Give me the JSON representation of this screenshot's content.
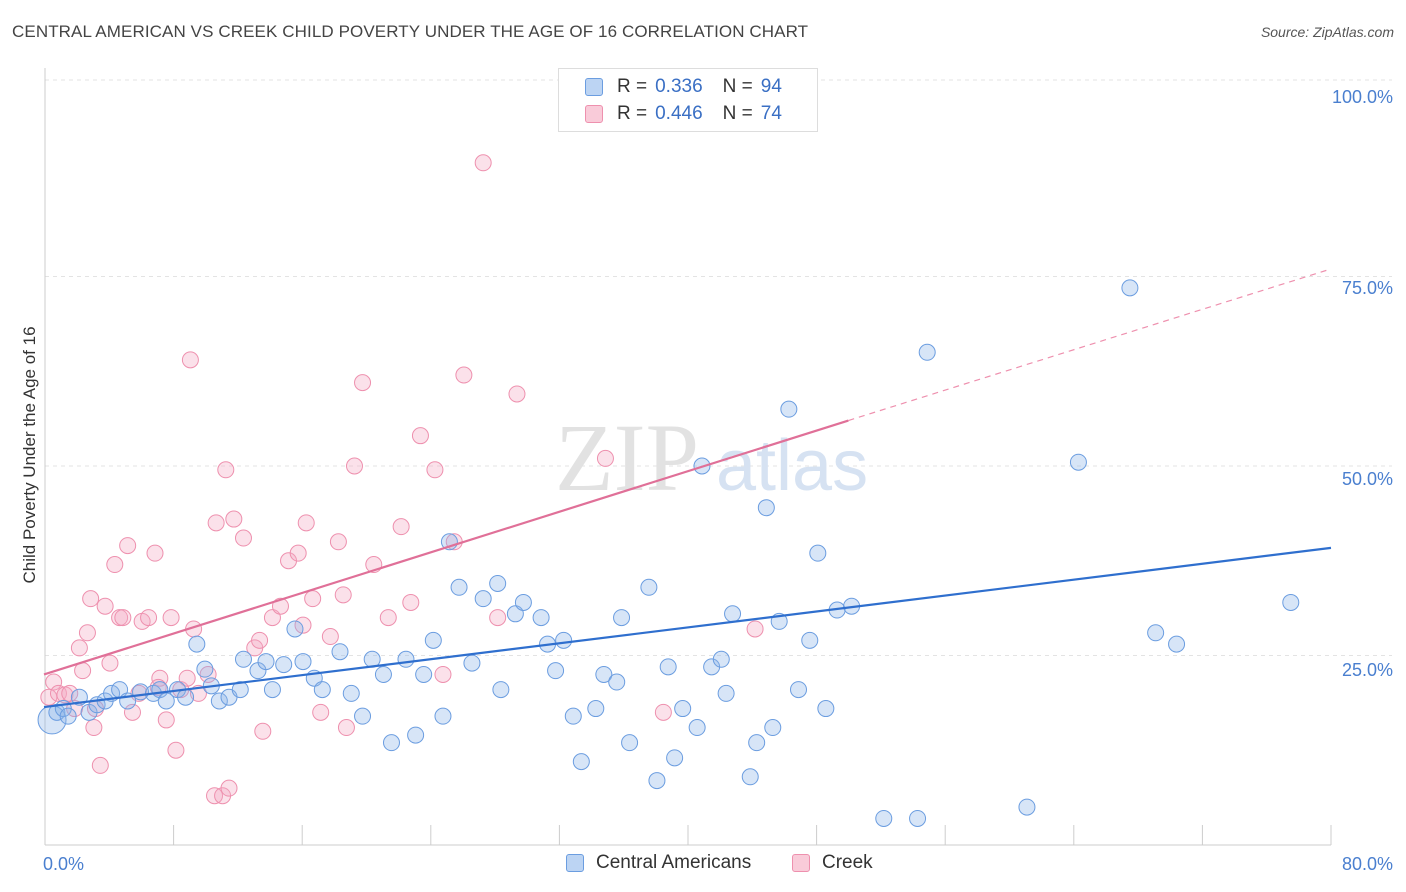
{
  "title": "CENTRAL AMERICAN VS CREEK CHILD POVERTY UNDER THE AGE OF 16 CORRELATION CHART",
  "source": "Source: ZipAtlas.com",
  "watermark": {
    "zip": "ZIP",
    "atlas": "atlas"
  },
  "legend": {
    "rows": [
      {
        "r_label": "R =",
        "r_value": "0.336",
        "n_label": "N =",
        "n_value": "94"
      },
      {
        "r_label": "R =",
        "r_value": "0.446",
        "n_label": "N =",
        "n_value": "74"
      }
    ]
  },
  "chart_data": {
    "type": "scatter",
    "ylabel": "Child Poverty Under the Age of 16",
    "xlim": [
      0,
      80
    ],
    "ylim": [
      0,
      100
    ],
    "x_tick_labels": [
      "0.0%",
      "80.0%"
    ],
    "y_tick_labels": [
      "100.0%",
      "75.0%",
      "50.0%",
      "25.0%"
    ],
    "y_ticks": [
      100,
      75,
      50,
      25
    ],
    "grid": "horizontal dashed",
    "legend_position": "top-center and bottom",
    "colors": {
      "blue": "#6b9de0",
      "blue_line": "#2f6fce",
      "pink": "#ee90ae",
      "pink_line": "#e07098"
    },
    "series": [
      {
        "name": "Central Americans",
        "color": "#6b9de0",
        "trend": {
          "x": [
            0,
            80
          ],
          "y": [
            18.2,
            39.2
          ]
        },
        "points": [
          [
            0.5,
            16.5
          ],
          [
            0.8,
            17.5
          ],
          [
            1.2,
            18
          ],
          [
            1.5,
            17
          ],
          [
            2.2,
            19.5
          ],
          [
            2.8,
            17.5
          ],
          [
            3.3,
            18.5
          ],
          [
            3.8,
            19
          ],
          [
            4.2,
            20
          ],
          [
            4.7,
            20.5
          ],
          [
            5.2,
            19
          ],
          [
            6,
            20.2
          ],
          [
            6.8,
            20
          ],
          [
            7.2,
            20.5
          ],
          [
            7.6,
            19
          ],
          [
            8.3,
            20.5
          ],
          [
            8.8,
            19.5
          ],
          [
            9.5,
            26.5
          ],
          [
            10,
            23.2
          ],
          [
            10.4,
            21
          ],
          [
            10.9,
            19
          ],
          [
            11.5,
            19.5
          ],
          [
            12.2,
            20.5
          ],
          [
            12.4,
            24.5
          ],
          [
            13.3,
            23
          ],
          [
            13.8,
            24.2
          ],
          [
            14.2,
            20.5
          ],
          [
            14.9,
            23.8
          ],
          [
            15.6,
            28.5
          ],
          [
            16.1,
            24.2
          ],
          [
            16.8,
            22
          ],
          [
            17.3,
            20.5
          ],
          [
            18.4,
            25.5
          ],
          [
            19.1,
            20
          ],
          [
            19.8,
            17
          ],
          [
            20.4,
            24.5
          ],
          [
            21.1,
            22.5
          ],
          [
            21.6,
            13.5
          ],
          [
            22.5,
            24.5
          ],
          [
            23.1,
            14.5
          ],
          [
            23.6,
            22.5
          ],
          [
            24.2,
            27
          ],
          [
            24.8,
            17
          ],
          [
            25.2,
            40
          ],
          [
            25.8,
            34
          ],
          [
            26.6,
            24
          ],
          [
            27.3,
            32.5
          ],
          [
            28.4,
            20.5
          ],
          [
            28.2,
            34.5
          ],
          [
            29.3,
            30.5
          ],
          [
            29.8,
            32
          ],
          [
            30.9,
            30
          ],
          [
            31.3,
            26.5
          ],
          [
            31.8,
            23
          ],
          [
            32.3,
            27
          ],
          [
            32.9,
            17
          ],
          [
            33.4,
            11
          ],
          [
            34.3,
            18
          ],
          [
            34.8,
            22.5
          ],
          [
            35.6,
            21.5
          ],
          [
            35.9,
            30
          ],
          [
            36.4,
            13.5
          ],
          [
            37.6,
            34
          ],
          [
            38.1,
            8.5
          ],
          [
            38.8,
            23.5
          ],
          [
            39.2,
            11.5
          ],
          [
            39.7,
            18
          ],
          [
            40.6,
            15.5
          ],
          [
            40.9,
            50
          ],
          [
            41.5,
            23.5
          ],
          [
            42.1,
            24.5
          ],
          [
            42.4,
            20
          ],
          [
            42.8,
            30.5
          ],
          [
            43.9,
            9
          ],
          [
            44.3,
            13.5
          ],
          [
            44.9,
            44.5
          ],
          [
            45.3,
            15.5
          ],
          [
            45.7,
            29.5
          ],
          [
            46.3,
            57.5
          ],
          [
            46.9,
            20.5
          ],
          [
            47.6,
            27
          ],
          [
            48.1,
            38.5
          ],
          [
            48.6,
            18
          ],
          [
            49.3,
            31
          ],
          [
            50.2,
            31.5
          ],
          [
            52.2,
            3.5
          ],
          [
            54.3,
            3.5
          ],
          [
            54.9,
            65
          ],
          [
            61.1,
            5
          ],
          [
            64.3,
            50.5
          ],
          [
            67.5,
            73.5
          ],
          [
            69.1,
            28
          ],
          [
            70.4,
            26.5
          ],
          [
            77.5,
            32
          ]
        ]
      },
      {
        "name": "Creek",
        "color": "#ee90ae",
        "trend": {
          "x": [
            0,
            50
          ],
          "y": [
            22.5,
            56
          ],
          "dashed_to": [
            80,
            76
          ]
        },
        "points": [
          [
            0.3,
            19.5
          ],
          [
            0.6,
            21.5
          ],
          [
            0.9,
            20
          ],
          [
            1.3,
            19.8
          ],
          [
            1.6,
            20
          ],
          [
            1.9,
            18
          ],
          [
            2.2,
            26
          ],
          [
            2.4,
            23
          ],
          [
            2.7,
            28
          ],
          [
            2.9,
            32.5
          ],
          [
            3.1,
            15.5
          ],
          [
            3.5,
            10.5
          ],
          [
            3.8,
            31.5
          ],
          [
            4.1,
            24
          ],
          [
            4.4,
            37
          ],
          [
            4.7,
            30
          ],
          [
            4.9,
            30
          ],
          [
            5.2,
            39.5
          ],
          [
            5.5,
            17.5
          ],
          [
            5.9,
            20
          ],
          [
            6.1,
            29.5
          ],
          [
            6.5,
            30
          ],
          [
            6.9,
            38.5
          ],
          [
            7.2,
            22
          ],
          [
            7.6,
            16.5
          ],
          [
            7.9,
            30
          ],
          [
            8.2,
            12.5
          ],
          [
            8.5,
            20.5
          ],
          [
            8.9,
            22
          ],
          [
            9.3,
            28.5
          ],
          [
            9.6,
            20
          ],
          [
            10.2,
            22.5
          ],
          [
            10.6,
            6.5
          ],
          [
            11.1,
            6.5
          ],
          [
            11.5,
            7.5
          ],
          [
            11.8,
            43
          ],
          [
            12.4,
            40.5
          ],
          [
            13.1,
            26
          ],
          [
            13.6,
            15
          ],
          [
            14.2,
            30
          ],
          [
            14.7,
            31.5
          ],
          [
            15.2,
            37.5
          ],
          [
            15.8,
            38.5
          ],
          [
            16.3,
            42.5
          ],
          [
            16.7,
            32.5
          ],
          [
            17.2,
            17.5
          ],
          [
            17.8,
            27.5
          ],
          [
            18.3,
            40
          ],
          [
            18.8,
            15.5
          ],
          [
            19.3,
            50
          ],
          [
            19.8,
            61
          ],
          [
            20.5,
            37
          ],
          [
            21.4,
            30
          ],
          [
            22.2,
            42
          ],
          [
            22.8,
            32
          ],
          [
            23.4,
            54
          ],
          [
            24.3,
            49.5
          ],
          [
            24.8,
            22.5
          ],
          [
            25.5,
            40
          ],
          [
            26.1,
            62
          ],
          [
            27.3,
            90
          ],
          [
            28.2,
            30
          ],
          [
            29.4,
            59.5
          ],
          [
            34.9,
            51
          ],
          [
            38.5,
            17.5
          ],
          [
            44.2,
            28.5
          ],
          [
            9.1,
            64
          ],
          [
            10.7,
            42.5
          ],
          [
            11.3,
            49.5
          ],
          [
            7.1,
            20.8
          ],
          [
            13.4,
            27
          ],
          [
            16.1,
            29
          ],
          [
            18.6,
            33
          ],
          [
            3.2,
            18
          ]
        ]
      }
    ]
  }
}
